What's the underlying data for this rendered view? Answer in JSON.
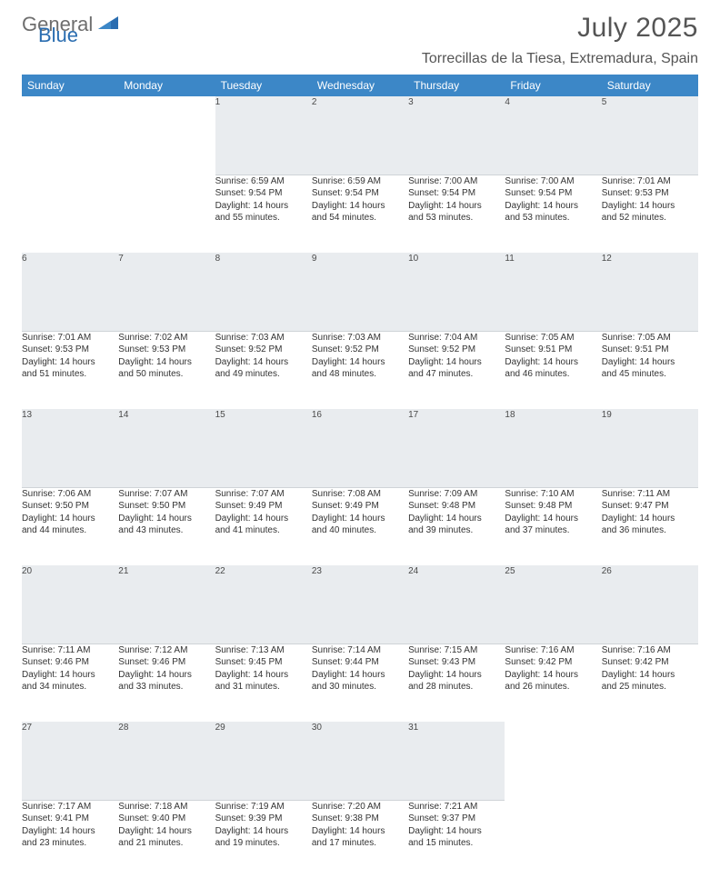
{
  "brand": {
    "word1": "General",
    "word2": "Blue"
  },
  "title": "July 2025",
  "location": "Torrecillas de la Tiesa, Extremadura, Spain",
  "colors": {
    "header_bg": "#3c87c7",
    "header_text": "#ffffff",
    "daynum_bg": "#e9ecef",
    "text": "#333333",
    "brand_gray": "#6e6e6e",
    "brand_blue": "#2a6db0"
  },
  "weekdays": [
    "Sunday",
    "Monday",
    "Tuesday",
    "Wednesday",
    "Thursday",
    "Friday",
    "Saturday"
  ],
  "weeks": [
    {
      "nums": [
        "",
        "",
        "1",
        "2",
        "3",
        "4",
        "5"
      ],
      "cells": [
        null,
        null,
        {
          "sunrise": "Sunrise: 6:59 AM",
          "sunset": "Sunset: 9:54 PM",
          "day1": "Daylight: 14 hours",
          "day2": "and 55 minutes."
        },
        {
          "sunrise": "Sunrise: 6:59 AM",
          "sunset": "Sunset: 9:54 PM",
          "day1": "Daylight: 14 hours",
          "day2": "and 54 minutes."
        },
        {
          "sunrise": "Sunrise: 7:00 AM",
          "sunset": "Sunset: 9:54 PM",
          "day1": "Daylight: 14 hours",
          "day2": "and 53 minutes."
        },
        {
          "sunrise": "Sunrise: 7:00 AM",
          "sunset": "Sunset: 9:54 PM",
          "day1": "Daylight: 14 hours",
          "day2": "and 53 minutes."
        },
        {
          "sunrise": "Sunrise: 7:01 AM",
          "sunset": "Sunset: 9:53 PM",
          "day1": "Daylight: 14 hours",
          "day2": "and 52 minutes."
        }
      ]
    },
    {
      "nums": [
        "6",
        "7",
        "8",
        "9",
        "10",
        "11",
        "12"
      ],
      "cells": [
        {
          "sunrise": "Sunrise: 7:01 AM",
          "sunset": "Sunset: 9:53 PM",
          "day1": "Daylight: 14 hours",
          "day2": "and 51 minutes."
        },
        {
          "sunrise": "Sunrise: 7:02 AM",
          "sunset": "Sunset: 9:53 PM",
          "day1": "Daylight: 14 hours",
          "day2": "and 50 minutes."
        },
        {
          "sunrise": "Sunrise: 7:03 AM",
          "sunset": "Sunset: 9:52 PM",
          "day1": "Daylight: 14 hours",
          "day2": "and 49 minutes."
        },
        {
          "sunrise": "Sunrise: 7:03 AM",
          "sunset": "Sunset: 9:52 PM",
          "day1": "Daylight: 14 hours",
          "day2": "and 48 minutes."
        },
        {
          "sunrise": "Sunrise: 7:04 AM",
          "sunset": "Sunset: 9:52 PM",
          "day1": "Daylight: 14 hours",
          "day2": "and 47 minutes."
        },
        {
          "sunrise": "Sunrise: 7:05 AM",
          "sunset": "Sunset: 9:51 PM",
          "day1": "Daylight: 14 hours",
          "day2": "and 46 minutes."
        },
        {
          "sunrise": "Sunrise: 7:05 AM",
          "sunset": "Sunset: 9:51 PM",
          "day1": "Daylight: 14 hours",
          "day2": "and 45 minutes."
        }
      ]
    },
    {
      "nums": [
        "13",
        "14",
        "15",
        "16",
        "17",
        "18",
        "19"
      ],
      "cells": [
        {
          "sunrise": "Sunrise: 7:06 AM",
          "sunset": "Sunset: 9:50 PM",
          "day1": "Daylight: 14 hours",
          "day2": "and 44 minutes."
        },
        {
          "sunrise": "Sunrise: 7:07 AM",
          "sunset": "Sunset: 9:50 PM",
          "day1": "Daylight: 14 hours",
          "day2": "and 43 minutes."
        },
        {
          "sunrise": "Sunrise: 7:07 AM",
          "sunset": "Sunset: 9:49 PM",
          "day1": "Daylight: 14 hours",
          "day2": "and 41 minutes."
        },
        {
          "sunrise": "Sunrise: 7:08 AM",
          "sunset": "Sunset: 9:49 PM",
          "day1": "Daylight: 14 hours",
          "day2": "and 40 minutes."
        },
        {
          "sunrise": "Sunrise: 7:09 AM",
          "sunset": "Sunset: 9:48 PM",
          "day1": "Daylight: 14 hours",
          "day2": "and 39 minutes."
        },
        {
          "sunrise": "Sunrise: 7:10 AM",
          "sunset": "Sunset: 9:48 PM",
          "day1": "Daylight: 14 hours",
          "day2": "and 37 minutes."
        },
        {
          "sunrise": "Sunrise: 7:11 AM",
          "sunset": "Sunset: 9:47 PM",
          "day1": "Daylight: 14 hours",
          "day2": "and 36 minutes."
        }
      ]
    },
    {
      "nums": [
        "20",
        "21",
        "22",
        "23",
        "24",
        "25",
        "26"
      ],
      "cells": [
        {
          "sunrise": "Sunrise: 7:11 AM",
          "sunset": "Sunset: 9:46 PM",
          "day1": "Daylight: 14 hours",
          "day2": "and 34 minutes."
        },
        {
          "sunrise": "Sunrise: 7:12 AM",
          "sunset": "Sunset: 9:46 PM",
          "day1": "Daylight: 14 hours",
          "day2": "and 33 minutes."
        },
        {
          "sunrise": "Sunrise: 7:13 AM",
          "sunset": "Sunset: 9:45 PM",
          "day1": "Daylight: 14 hours",
          "day2": "and 31 minutes."
        },
        {
          "sunrise": "Sunrise: 7:14 AM",
          "sunset": "Sunset: 9:44 PM",
          "day1": "Daylight: 14 hours",
          "day2": "and 30 minutes."
        },
        {
          "sunrise": "Sunrise: 7:15 AM",
          "sunset": "Sunset: 9:43 PM",
          "day1": "Daylight: 14 hours",
          "day2": "and 28 minutes."
        },
        {
          "sunrise": "Sunrise: 7:16 AM",
          "sunset": "Sunset: 9:42 PM",
          "day1": "Daylight: 14 hours",
          "day2": "and 26 minutes."
        },
        {
          "sunrise": "Sunrise: 7:16 AM",
          "sunset": "Sunset: 9:42 PM",
          "day1": "Daylight: 14 hours",
          "day2": "and 25 minutes."
        }
      ]
    },
    {
      "nums": [
        "27",
        "28",
        "29",
        "30",
        "31",
        "",
        ""
      ],
      "cells": [
        {
          "sunrise": "Sunrise: 7:17 AM",
          "sunset": "Sunset: 9:41 PM",
          "day1": "Daylight: 14 hours",
          "day2": "and 23 minutes."
        },
        {
          "sunrise": "Sunrise: 7:18 AM",
          "sunset": "Sunset: 9:40 PM",
          "day1": "Daylight: 14 hours",
          "day2": "and 21 minutes."
        },
        {
          "sunrise": "Sunrise: 7:19 AM",
          "sunset": "Sunset: 9:39 PM",
          "day1": "Daylight: 14 hours",
          "day2": "and 19 minutes."
        },
        {
          "sunrise": "Sunrise: 7:20 AM",
          "sunset": "Sunset: 9:38 PM",
          "day1": "Daylight: 14 hours",
          "day2": "and 17 minutes."
        },
        {
          "sunrise": "Sunrise: 7:21 AM",
          "sunset": "Sunset: 9:37 PM",
          "day1": "Daylight: 14 hours",
          "day2": "and 15 minutes."
        },
        null,
        null
      ]
    }
  ]
}
